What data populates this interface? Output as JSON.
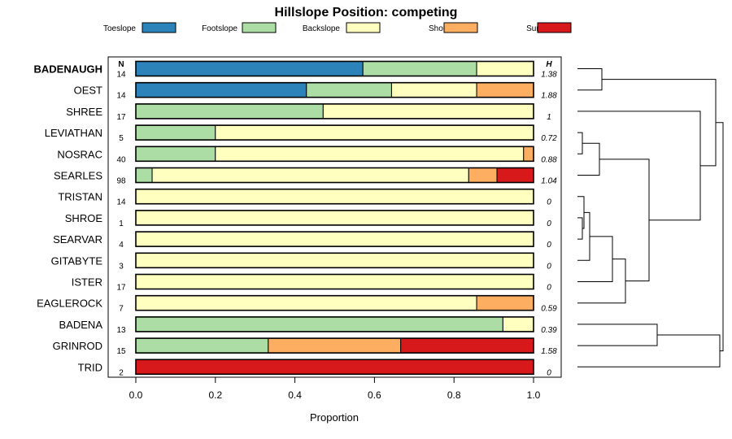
{
  "chart_data": {
    "type": "bar",
    "orientation": "horizontal",
    "stacked": true,
    "title": "Hillslope Position: competing",
    "xlabel": "Proportion",
    "ylabel": "",
    "xlim": [
      0,
      1
    ],
    "x_ticks": [
      "0.0",
      "0.2",
      "0.4",
      "0.6",
      "0.8",
      "1.0"
    ],
    "x_tick_values": [
      0,
      0.2,
      0.4,
      0.6,
      0.8,
      1.0
    ],
    "legend_position": "top",
    "n_header": "N",
    "h_header": "H",
    "categories": [
      "BADENAUGH",
      "OEST",
      "SHREE",
      "LEVIATHAN",
      "NOSRAC",
      "SEARLES",
      "TRISTAN",
      "SHROE",
      "SEARVAR",
      "GITABYTE",
      "ISTER",
      "EAGLEROCK",
      "BADENA",
      "GRINROD",
      "TRID"
    ],
    "highlighted": "BADENAUGH",
    "n": [
      "14",
      "14",
      "17",
      "5",
      "40",
      "98",
      "14",
      "1",
      "4",
      "3",
      "17",
      "7",
      "13",
      "15",
      "2"
    ],
    "h": [
      "1.38",
      "1.88",
      "1",
      "0.72",
      "0.88",
      "1.04",
      "0",
      "0",
      "0",
      "0",
      "0",
      "0.59",
      "0.39",
      "1.58",
      "0"
    ],
    "series": [
      {
        "name": "Toeslope",
        "color": "#2b83ba",
        "values": [
          0.571,
          0.429,
          0,
          0,
          0,
          0,
          0,
          0,
          0,
          0,
          0,
          0,
          0,
          0,
          0
        ]
      },
      {
        "name": "Footslope",
        "color": "#abdda4",
        "values": [
          0.286,
          0.214,
          0.471,
          0.2,
          0.2,
          0.041,
          0,
          0,
          0,
          0,
          0,
          0,
          0.923,
          0.333,
          0
        ]
      },
      {
        "name": "Backslope",
        "color": "#ffffbf",
        "values": [
          0.143,
          0.214,
          0.529,
          0.8,
          0.775,
          0.796,
          1,
          1,
          1,
          1,
          1,
          0.857,
          0.077,
          0,
          0
        ]
      },
      {
        "name": "Shoulder",
        "color": "#fdae61",
        "values": [
          0,
          0.143,
          0,
          0,
          0.025,
          0.071,
          0,
          0,
          0,
          0,
          0,
          0.143,
          0,
          0.333,
          0
        ]
      },
      {
        "name": "Summit",
        "color": "#d7191c",
        "values": [
          0,
          0,
          0,
          0,
          0,
          0.092,
          0,
          0,
          0,
          0,
          0,
          0,
          0,
          0.334,
          1
        ]
      }
    ]
  }
}
